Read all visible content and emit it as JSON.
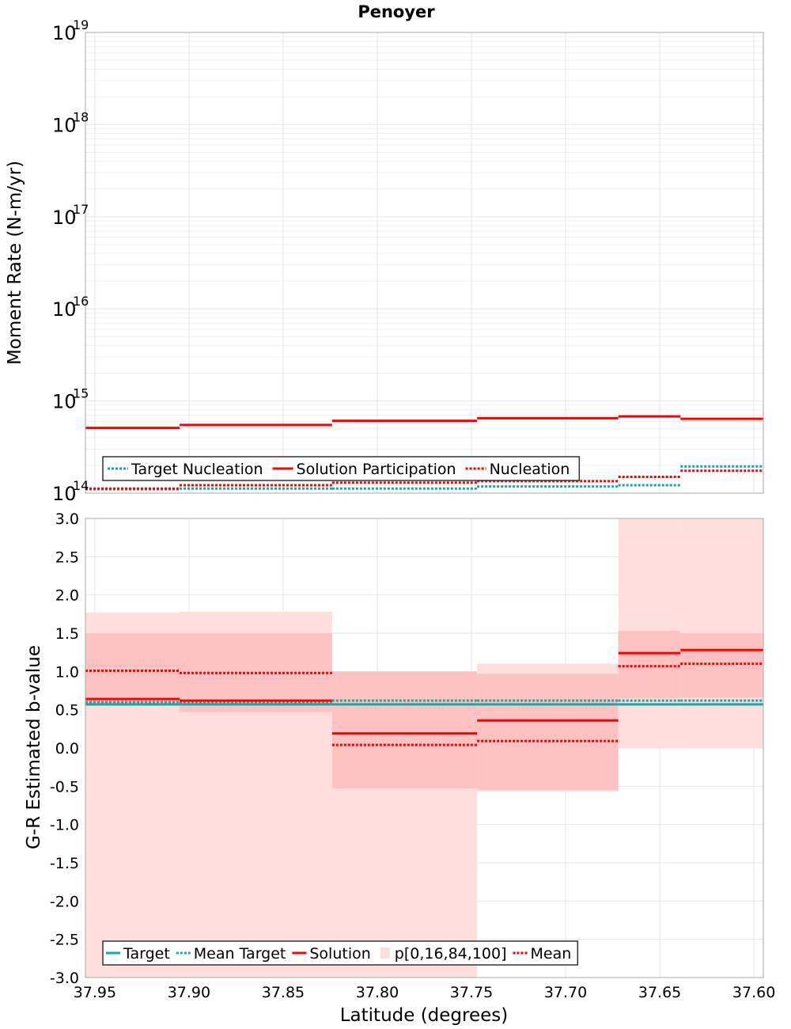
{
  "title": "Penoyer",
  "colors": {
    "target": "#1aa6a6",
    "solution": "#ff0000",
    "band_outer": "#ffdede",
    "band_inner": "#ffc2c2",
    "grid": "#e6e6e6",
    "grid_minor": "#f0f0f0",
    "frame": "#aaaaaa"
  },
  "chart_data": [
    {
      "type": "line",
      "panel": "top",
      "title": "Penoyer",
      "xlabel": "Latitude (degrees)",
      "ylabel": "Moment Rate (N-m/yr)",
      "yscale": "log",
      "ylim": [
        100000000000000.0,
        1e+19
      ],
      "xlim": [
        37.955,
        37.595
      ],
      "x_reversed": true,
      "grid": true,
      "ytick_labels": [
        {
          "base": "10",
          "exp": "14",
          "value": 100000000000000.0
        },
        {
          "base": "10",
          "exp": "15",
          "value": 1000000000000000.0
        },
        {
          "base": "10",
          "exp": "16",
          "value": 1e+16
        },
        {
          "base": "10",
          "exp": "17",
          "value": 1e+17
        },
        {
          "base": "10",
          "exp": "18",
          "value": 1e+18
        },
        {
          "base": "10",
          "exp": "19",
          "value": 1e+19
        }
      ],
      "x_edges": [
        37.955,
        37.905,
        37.824,
        37.747,
        37.672,
        37.639,
        37.595
      ],
      "series": [
        {
          "name": "Target Nucleation",
          "style": "dotted",
          "color": "#1aa6a6",
          "values": [
            110000000000000.0,
            112000000000000.0,
            112000000000000.0,
            118000000000000.0,
            122000000000000.0,
            195000000000000.0,
            230000000000000.0
          ]
        },
        {
          "name": "Solution Participation",
          "style": "solid",
          "color": "#ff0000",
          "values": [
            510000000000000.0,
            550000000000000.0,
            610000000000000.0,
            650000000000000.0,
            680000000000000.0,
            640000000000000.0
          ]
        },
        {
          "name": "Nucleation",
          "style": "dotted",
          "color": "#ff0000",
          "values": [
            112000000000000.0,
            122000000000000.0,
            130000000000000.0,
            135000000000000.0,
            150000000000000.0,
            175000000000000.0,
            165000000000000.0
          ]
        }
      ],
      "legend": {
        "position": "bottom-left"
      }
    },
    {
      "type": "line",
      "panel": "bottom",
      "xlabel": "Latitude (degrees)",
      "ylabel": "G-R Estimated b-value",
      "ylim": [
        -3.0,
        3.0
      ],
      "xlim": [
        37.955,
        37.595
      ],
      "x_reversed": true,
      "grid": true,
      "x_tick_labels": [
        "37.95",
        "37.90",
        "37.85",
        "37.80",
        "37.75",
        "37.70",
        "37.65",
        "37.60"
      ],
      "x_ticks": [
        37.95,
        37.9,
        37.85,
        37.8,
        37.75,
        37.7,
        37.65,
        37.6
      ],
      "y_tick_labels": [
        "3.0",
        "2.5",
        "2.0",
        "1.5",
        "1.0",
        "0.5",
        "0.0",
        "-0.5",
        "-1.0",
        "-1.5",
        "-2.0",
        "-2.5",
        "-3.0"
      ],
      "y_ticks": [
        3.0,
        2.5,
        2.0,
        1.5,
        1.0,
        0.5,
        0.0,
        -0.5,
        -1.0,
        -1.5,
        -2.0,
        -2.5,
        -3.0
      ],
      "x_edges": [
        37.955,
        37.905,
        37.824,
        37.747,
        37.672,
        37.639,
        37.595
      ],
      "bands": [
        {
          "p0": -3.0,
          "p16": 0.55,
          "p84": 1.5,
          "p100": 1.77
        },
        {
          "p0": -3.0,
          "p16": 0.47,
          "p84": 1.5,
          "p100": 1.78
        },
        {
          "p0": -3.0,
          "p16": -0.53,
          "p84": 1.0,
          "p100": 1.0
        },
        {
          "p0": -0.57,
          "p16": -0.55,
          "p84": 0.97,
          "p100": 1.1
        },
        {
          "p0": 0.0,
          "p16": 0.65,
          "p84": 1.53,
          "p100": 3.0
        },
        {
          "p0": 0.0,
          "p16": 0.66,
          "p84": 1.5,
          "p100": 3.0
        }
      ],
      "series": [
        {
          "name": "Target",
          "style": "solid",
          "color": "#1aa6a6",
          "values": [
            0.57,
            0.57,
            0.57,
            0.57,
            0.57,
            0.57
          ]
        },
        {
          "name": "Mean Target",
          "style": "dotted",
          "color": "#1aa6a6",
          "values": [
            0.6,
            0.6,
            0.62,
            0.62,
            0.62,
            0.62
          ]
        },
        {
          "name": "Solution",
          "style": "solid",
          "color": "#ff0000",
          "values": [
            0.64,
            0.62,
            0.19,
            0.36,
            1.24,
            1.28
          ]
        },
        {
          "name": "Mean",
          "style": "dotted",
          "color": "#ff0000",
          "values": [
            1.01,
            0.98,
            0.04,
            0.09,
            1.07,
            1.1
          ]
        }
      ],
      "band_name": "p[0,16,84,100]",
      "legend": {
        "position": "bottom-left"
      }
    }
  ]
}
